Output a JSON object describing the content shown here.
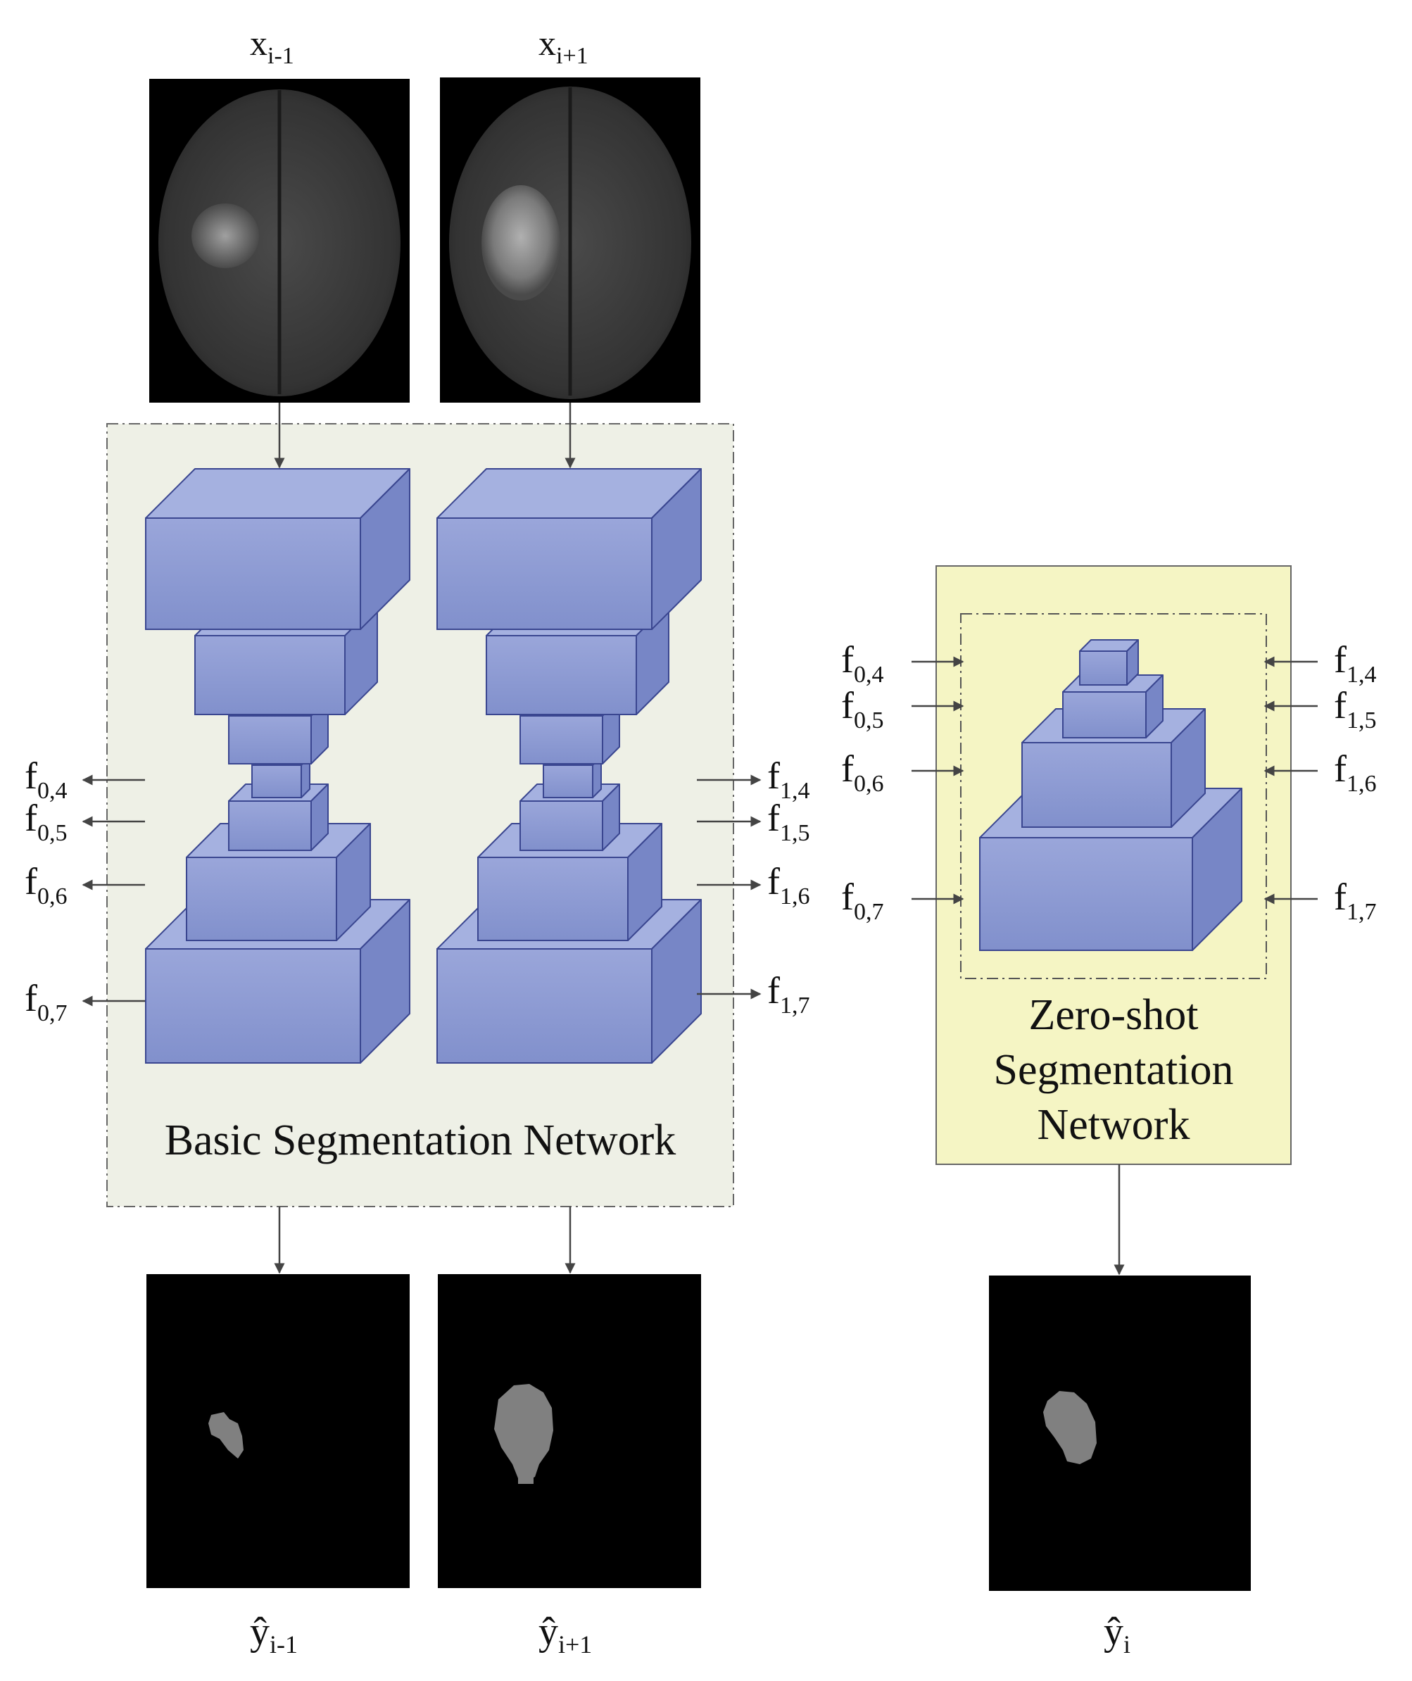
{
  "inputs": [
    {
      "base": "x",
      "sub": "i-1"
    },
    {
      "base": "x",
      "sub": "i+1"
    }
  ],
  "outputs": [
    {
      "base": "ŷ",
      "sub": "i-1"
    },
    {
      "base": "ŷ",
      "sub": "i+1"
    },
    {
      "base": "ŷ",
      "sub": "i"
    }
  ],
  "basic_network": {
    "title": "Basic Segmentation Network",
    "left_features": [
      {
        "base": "f",
        "sub": "0,4"
      },
      {
        "base": "f",
        "sub": "0,5"
      },
      {
        "base": "f",
        "sub": "0,6"
      },
      {
        "base": "f",
        "sub": "0,7"
      }
    ],
    "right_features": [
      {
        "base": "f",
        "sub": "1,4"
      },
      {
        "base": "f",
        "sub": "1,5"
      },
      {
        "base": "f",
        "sub": "1,6"
      },
      {
        "base": "f",
        "sub": "1,7"
      }
    ]
  },
  "zero_shot_network": {
    "title_lines": [
      "Zero-shot",
      "Segmentation",
      "Network"
    ],
    "left_features": [
      {
        "base": "f",
        "sub": "0,4"
      },
      {
        "base": "f",
        "sub": "0,5"
      },
      {
        "base": "f",
        "sub": "0,6"
      },
      {
        "base": "f",
        "sub": "0,7"
      }
    ],
    "right_features": [
      {
        "base": "f",
        "sub": "1,4"
      },
      {
        "base": "f",
        "sub": "1,5"
      },
      {
        "base": "f",
        "sub": "1,6"
      },
      {
        "base": "f",
        "sub": "1,7"
      }
    ]
  },
  "colors": {
    "basic_panel_fill": "#eef0e6",
    "zero_shot_panel_fill": "#f5f5c4",
    "block_front": "#8c9bd3",
    "block_side": "#7786c6",
    "block_top": "#a5b1e0",
    "block_stroke": "#3a4690",
    "arrow": "#444444",
    "image_background": "#000000",
    "mask_gray": "#808080"
  }
}
